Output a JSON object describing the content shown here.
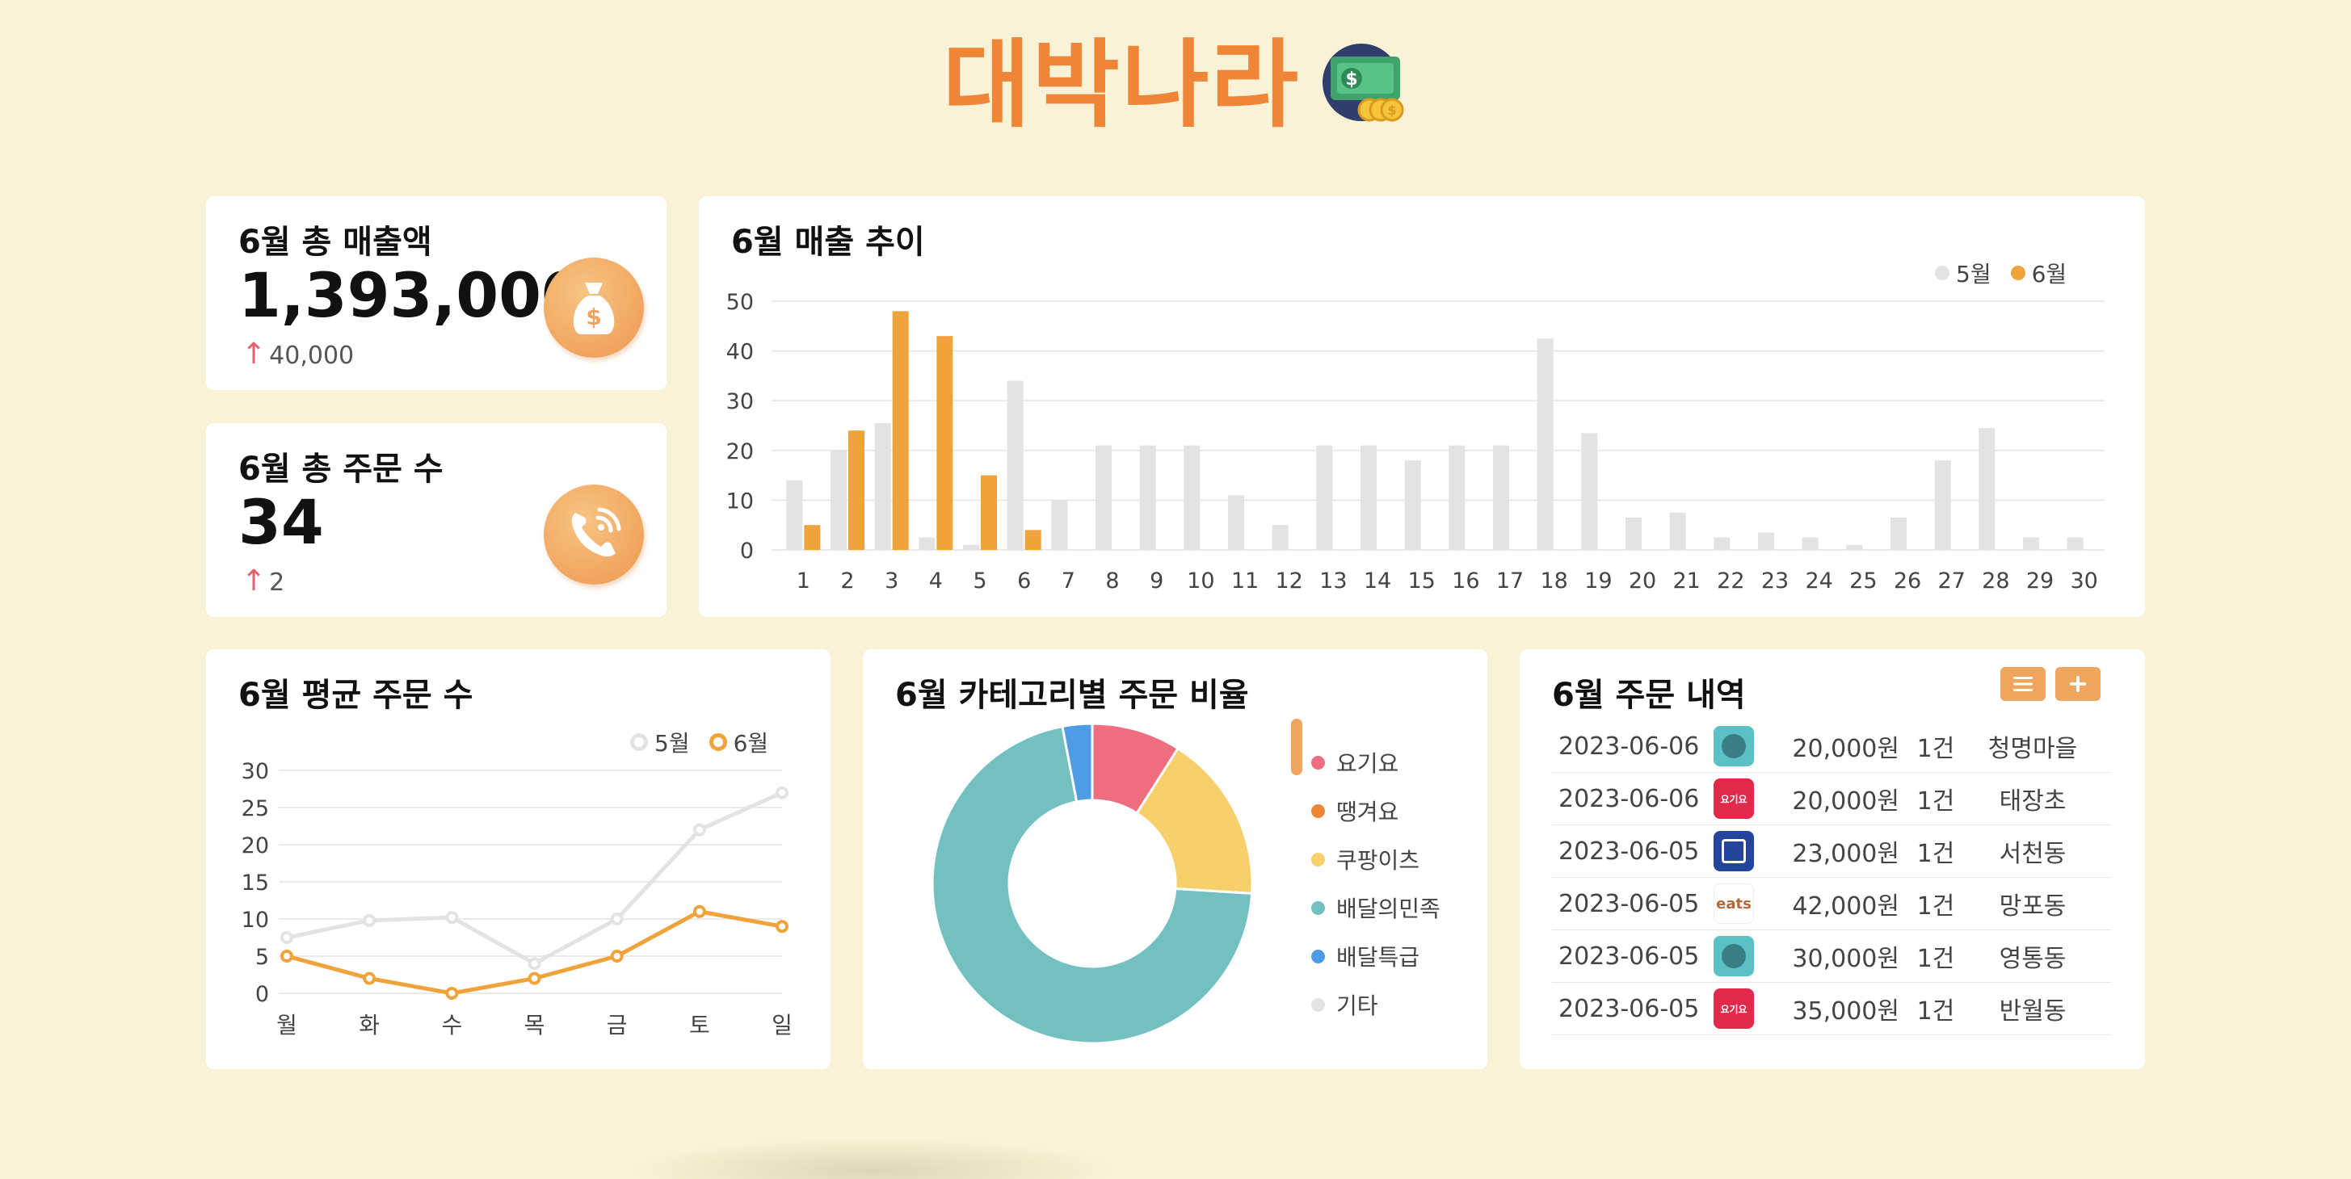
{
  "app": {
    "title": "대박나라"
  },
  "sales_card": {
    "title": "6월 총 매출액",
    "value": "1,393,000",
    "delta": "40,000"
  },
  "orders_card": {
    "title": "6월 총 주문 수",
    "value": "34",
    "delta": "2"
  },
  "trend_card": {
    "title": "6월 매출 추이"
  },
  "avg_card": {
    "title": "6월 평균 주문 수"
  },
  "category_card": {
    "title": "6월 카테고리별 주문 비율"
  },
  "history_card": {
    "title": "6월 주문 내역",
    "rows": [
      {
        "date": "2023-06-06",
        "app": "배민",
        "amount": "20,000원",
        "count": "1건",
        "place": "청명마을"
      },
      {
        "date": "2023-06-06",
        "app": "요기요",
        "amount": "20,000원",
        "count": "1건",
        "place": "태장초"
      },
      {
        "date": "2023-06-05",
        "app": "배달특급",
        "amount": "23,000원",
        "count": "1건",
        "place": "서천동"
      },
      {
        "date": "2023-06-05",
        "app": "coupang eats",
        "amount": "42,000원",
        "count": "1건",
        "place": "망포동"
      },
      {
        "date": "2023-06-05",
        "app": "배민",
        "amount": "30,000원",
        "count": "1건",
        "place": "영통동"
      },
      {
        "date": "2023-06-05",
        "app": "요기요",
        "amount": "35,000원",
        "count": "1건",
        "place": "반월동"
      }
    ]
  },
  "colors": {
    "background": "#FAF2D6",
    "accent": "#EE8537",
    "june": "#F0A33A",
    "may": "#E3E3E3",
    "up_arrow": "#E8606E"
  },
  "chart_data": [
    {
      "type": "bar",
      "title": "6월 매출 추이",
      "categories": [
        "1",
        "2",
        "3",
        "4",
        "5",
        "6",
        "7",
        "8",
        "9",
        "10",
        "11",
        "12",
        "13",
        "14",
        "15",
        "16",
        "17",
        "18",
        "19",
        "20",
        "21",
        "22",
        "23",
        "24",
        "25",
        "26",
        "27",
        "28",
        "29",
        "30"
      ],
      "series": [
        {
          "name": "5월",
          "color": "#E3E3E3",
          "values": [
            14,
            20,
            25.5,
            2.5,
            1,
            34,
            10,
            21,
            21,
            21,
            11,
            5,
            21,
            21,
            18,
            21,
            21,
            42.5,
            23.5,
            6.5,
            7.5,
            2.5,
            3.5,
            2.5,
            1,
            6.5,
            18,
            24.5,
            2.5,
            2.5
          ]
        },
        {
          "name": "6월",
          "color": "#F0A33A",
          "values": [
            5,
            24,
            48,
            43,
            15,
            4,
            0,
            0,
            0,
            0,
            0,
            0,
            0,
            0,
            0,
            0,
            0,
            0,
            0,
            0,
            0,
            0,
            0,
            0,
            0,
            0,
            0,
            0,
            0,
            0
          ]
        }
      ],
      "yticks": [
        0,
        10,
        20,
        30,
        40,
        50
      ],
      "ylim": [
        0,
        50
      ],
      "grid": true,
      "legend": "top-right"
    },
    {
      "type": "line",
      "title": "6월 평균 주문 수",
      "categories": [
        "월",
        "화",
        "수",
        "목",
        "금",
        "토",
        "일"
      ],
      "series": [
        {
          "name": "5월",
          "color": "#E3E3E3",
          "values": [
            7.5,
            9.8,
            10.2,
            4,
            10,
            22,
            27
          ]
        },
        {
          "name": "6월",
          "color": "#F0A33A",
          "values": [
            5,
            2,
            0,
            2,
            5,
            11,
            9
          ]
        }
      ],
      "yticks": [
        0,
        5,
        10,
        15,
        20,
        25,
        30
      ],
      "ylim": [
        0,
        30
      ],
      "grid": true,
      "legend": "top-right"
    },
    {
      "type": "pie",
      "title": "6월 카테고리별 주문 비율",
      "labels": [
        "요기요",
        "땡겨요",
        "쿠팡이츠",
        "배달의민족",
        "배달특급",
        "기타"
      ],
      "values": [
        9,
        0,
        17,
        71,
        3,
        0
      ],
      "colors": [
        "#EE6E80",
        "#EE8537",
        "#F7D06B",
        "#72C0C0",
        "#4E9BE6",
        "#E3E3E3"
      ],
      "donut": true
    }
  ]
}
